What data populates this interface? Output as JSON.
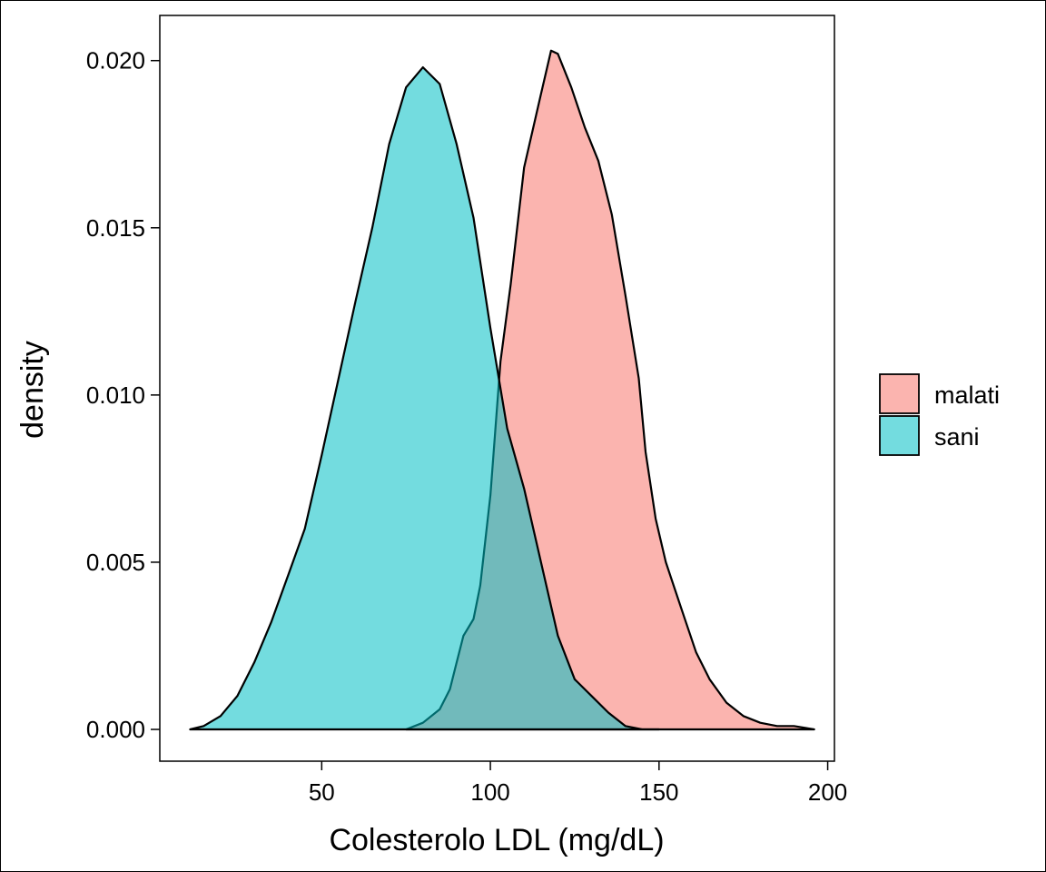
{
  "chart_data": {
    "type": "area",
    "title": "",
    "xlabel": "Colesterolo LDL (mg/dL)",
    "ylabel": "density",
    "xlim": [
      2,
      202
    ],
    "ylim": [
      -0.00095,
      0.02135
    ],
    "x_ticks": [
      50,
      100,
      150,
      200
    ],
    "x_tick_labels": [
      "50",
      "100",
      "150",
      "200"
    ],
    "y_ticks": [
      0,
      0.005,
      0.01,
      0.015,
      0.02
    ],
    "y_tick_labels": [
      "0.000",
      "0.005",
      "0.010",
      "0.015",
      "0.020"
    ],
    "grid": false,
    "legend_position": "right",
    "series": [
      {
        "name": "malati",
        "color": "#F8766D",
        "points": [
          [
            75,
            0
          ],
          [
            80,
            0.0002
          ],
          [
            85,
            0.0006
          ],
          [
            88,
            0.0012
          ],
          [
            90,
            0.002
          ],
          [
            92,
            0.0028
          ],
          [
            95,
            0.0033
          ],
          [
            97,
            0.0043
          ],
          [
            100,
            0.007
          ],
          [
            103,
            0.011
          ],
          [
            106,
            0.0133
          ],
          [
            110,
            0.0168
          ],
          [
            115,
            0.019
          ],
          [
            118,
            0.0203
          ],
          [
            120,
            0.0202
          ],
          [
            124,
            0.0192
          ],
          [
            128,
            0.018
          ],
          [
            132,
            0.017
          ],
          [
            136,
            0.0154
          ],
          [
            140,
            0.013
          ],
          [
            144,
            0.0105
          ],
          [
            146,
            0.0083
          ],
          [
            149,
            0.0063
          ],
          [
            152,
            0.005
          ],
          [
            155,
            0.0041
          ],
          [
            158,
            0.0032
          ],
          [
            161,
            0.0023
          ],
          [
            165,
            0.0015
          ],
          [
            170,
            0.0008
          ],
          [
            175,
            0.0004
          ],
          [
            180,
            0.0002
          ],
          [
            185,
            0.0001
          ],
          [
            190,
            0.0001
          ],
          [
            196,
            0
          ]
        ]
      },
      {
        "name": "sani",
        "color": "#00BFC4",
        "points": [
          [
            11,
            0
          ],
          [
            15,
            0.0001
          ],
          [
            20,
            0.0004
          ],
          [
            25,
            0.001
          ],
          [
            30,
            0.002
          ],
          [
            35,
            0.0032
          ],
          [
            40,
            0.0046
          ],
          [
            45,
            0.006
          ],
          [
            50,
            0.0082
          ],
          [
            55,
            0.0105
          ],
          [
            60,
            0.0128
          ],
          [
            65,
            0.015
          ],
          [
            70,
            0.0175
          ],
          [
            75,
            0.0192
          ],
          [
            80,
            0.0198
          ],
          [
            85,
            0.0193
          ],
          [
            90,
            0.0175
          ],
          [
            95,
            0.0153
          ],
          [
            100,
            0.012
          ],
          [
            105,
            0.009
          ],
          [
            110,
            0.0072
          ],
          [
            115,
            0.005
          ],
          [
            120,
            0.0028
          ],
          [
            125,
            0.0015
          ],
          [
            130,
            0.001
          ],
          [
            135,
            0.0005
          ],
          [
            140,
            0.0001
          ],
          [
            145,
            0.0
          ],
          [
            150,
            0
          ]
        ]
      }
    ]
  }
}
